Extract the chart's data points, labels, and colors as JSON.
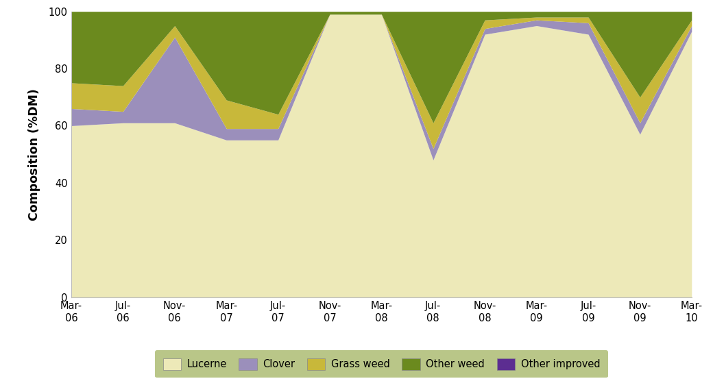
{
  "x_labels": [
    "Mar-\n06",
    "Jul-\n06",
    "Nov-\n06",
    "Mar-\n07",
    "Jul-\n07",
    "Nov-\n07",
    "Mar-\n08",
    "Jul-\n08",
    "Nov-\n08",
    "Mar-\n09",
    "Jul-\n09",
    "Nov-\n09",
    "Mar-\n10"
  ],
  "lucerne": [
    60,
    61,
    61,
    55,
    55,
    99,
    99,
    48,
    92,
    95,
    92,
    57,
    93
  ],
  "clover": [
    6,
    4,
    30,
    4,
    4,
    0,
    0,
    4,
    2,
    2,
    4,
    4,
    2
  ],
  "grass_weed": [
    9,
    9,
    4,
    10,
    5,
    0,
    0,
    9,
    3,
    1,
    2,
    9,
    2
  ],
  "other_weed": [
    25,
    26,
    5,
    31,
    36,
    1,
    1,
    39,
    3,
    2,
    2,
    30,
    3
  ],
  "other_improved": [
    0,
    0,
    0,
    0,
    0,
    0,
    0,
    0,
    0,
    0,
    0,
    0,
    0
  ],
  "lucerne_color": "#ede9b8",
  "clover_color": "#9b8fbb",
  "grass_weed_color": "#c8b83a",
  "other_weed_color": "#6b8a1e",
  "other_improved_color": "#5c2d91",
  "legend_bg_color": "#a8b86a",
  "ylabel": "Composition (%DM)",
  "ylim": [
    0,
    100
  ],
  "background_color": "#ffffff"
}
